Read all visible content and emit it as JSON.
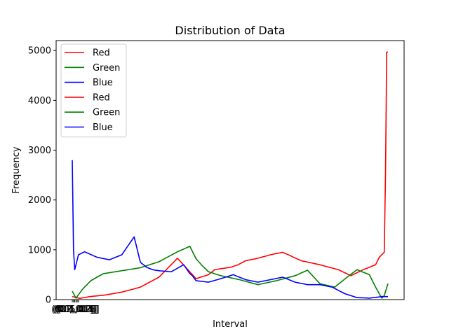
{
  "chart_data": {
    "type": "line",
    "title": "Distribution of Data",
    "xlabel": "Interval",
    "ylabel": "Frequency",
    "ylim": [
      0,
      5200
    ],
    "yticks": [
      0,
      1000,
      2000,
      3000,
      4000,
      5000
    ],
    "xticks": [
      "(0.0, 0.1]",
      "(0.1, 0.2]",
      "(0.2, 0.3]",
      "(0.3, 0.4]",
      "(0.4, 0.5]",
      "(0.5, 0.6]"
    ],
    "grid": false,
    "legend_position": "top-left",
    "x_count": 256,
    "series": [
      {
        "name": "Red",
        "color": "#ff0000",
        "x": [
          0,
          6,
          14,
          26,
          40,
          55,
          70,
          85,
          100,
          110,
          115,
          120,
          128,
          134,
          140,
          150,
          160,
          170,
          185,
          200,
          215,
          225,
          235,
          245,
          248,
          250,
          252,
          253,
          254,
          255
        ],
        "y": [
          60,
          25,
          60,
          90,
          150,
          250,
          450,
          830,
          420,
          500,
          600,
          620,
          650,
          700,
          780,
          830,
          900,
          950,
          780,
          700,
          600,
          480,
          600,
          700,
          850,
          900,
          950,
          2500,
          4970,
          4970
        ]
      },
      {
        "name": "Green",
        "color": "#008000",
        "x": [
          0,
          3,
          8,
          15,
          25,
          40,
          55,
          70,
          85,
          95,
          100,
          105,
          110,
          120,
          135,
          150,
          165,
          180,
          190,
          200,
          212,
          222,
          230,
          240,
          245,
          250,
          252,
          255
        ],
        "y": [
          170,
          30,
          200,
          380,
          520,
          580,
          640,
          760,
          960,
          1070,
          820,
          680,
          560,
          480,
          400,
          300,
          380,
          480,
          590,
          320,
          250,
          450,
          600,
          500,
          250,
          30,
          80,
          320
        ]
      },
      {
        "name": "Blue",
        "color": "#0000ff",
        "x": [
          0,
          1,
          2,
          5,
          10,
          20,
          30,
          40,
          50,
          55,
          60,
          65,
          70,
          80,
          90,
          95,
          97,
          100,
          110,
          120,
          130,
          140,
          150,
          160,
          170,
          180,
          190,
          200,
          210,
          220,
          230,
          240,
          250,
          255
        ],
        "y": [
          2800,
          1000,
          600,
          900,
          960,
          850,
          800,
          900,
          1260,
          750,
          650,
          600,
          580,
          560,
          700,
          520,
          480,
          380,
          350,
          420,
          500,
          400,
          350,
          400,
          450,
          350,
          300,
          300,
          250,
          120,
          40,
          30,
          60,
          60
        ]
      }
    ],
    "legend_entries": [
      {
        "name": "Red",
        "color": "#ff0000"
      },
      {
        "name": "Green",
        "color": "#008000"
      },
      {
        "name": "Blue",
        "color": "#0000ff"
      },
      {
        "name": "Red",
        "color": "#ff0000"
      },
      {
        "name": "Green",
        "color": "#008000"
      },
      {
        "name": "Blue",
        "color": "#0000ff"
      }
    ]
  }
}
